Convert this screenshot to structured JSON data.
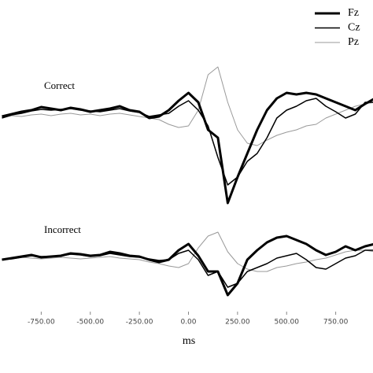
{
  "chart_data": [
    {
      "type": "line",
      "annotation": "Correct",
      "legend": "top-right",
      "xlim": [
        -960,
        940
      ],
      "ylim": [
        -12,
        8
      ],
      "x": [
        -950,
        -900,
        -850,
        -800,
        -750,
        -700,
        -650,
        -600,
        -550,
        -500,
        -450,
        -400,
        -350,
        -300,
        -250,
        -200,
        -150,
        -100,
        -50,
        0,
        50,
        100,
        150,
        200,
        250,
        300,
        350,
        400,
        450,
        500,
        550,
        600,
        650,
        700,
        750,
        800,
        850,
        900,
        950
      ],
      "series": [
        {
          "name": "Fz",
          "color": "#000000",
          "line_width": 3,
          "values": [
            -0.3,
            0,
            0.3,
            0.5,
            0.9,
            0.7,
            0.5,
            0.8,
            0.6,
            0.3,
            0.5,
            0.7,
            1.0,
            0.5,
            0.3,
            -0.5,
            -0.3,
            0.5,
            1.7,
            2.7,
            1.5,
            -2.0,
            -3.0,
            -11.3,
            -8.0,
            -5.0,
            -2.0,
            0.5,
            2.0,
            2.7,
            2.5,
            2.7,
            2.5,
            2.0,
            1.5,
            1.0,
            0.5,
            1.3,
            2.0
          ]
        },
        {
          "name": "Cz",
          "color": "#000000",
          "line_width": 1.5,
          "values": [
            -0.5,
            -0.1,
            0.1,
            0.4,
            0.6,
            0.5,
            0.6,
            0.7,
            0.5,
            0.4,
            0.3,
            0.5,
            0.7,
            0.4,
            0.2,
            -0.3,
            -0.1,
            0.1,
            1.0,
            1.7,
            0.5,
            -1.5,
            -5.5,
            -9.0,
            -8.0,
            -6.0,
            -5.0,
            -3.0,
            -0.5,
            0.5,
            1.0,
            1.7,
            2.0,
            1.0,
            0.3,
            -0.5,
            0,
            1.5,
            1.5
          ]
        },
        {
          "name": "Pz",
          "color": "#999999",
          "line_width": 1,
          "values": [
            -0.5,
            -0.2,
            -0.3,
            -0.1,
            0,
            -0.2,
            0,
            0.1,
            -0.1,
            0,
            -0.2,
            0,
            0.1,
            -0.1,
            -0.3,
            -0.5,
            -0.7,
            -1.3,
            -1.7,
            -1.5,
            0.5,
            5.0,
            6.0,
            1.5,
            -2.0,
            -3.7,
            -4.0,
            -3.3,
            -2.7,
            -2.3,
            -2.0,
            -1.5,
            -1.3,
            -0.5,
            0,
            0.5,
            1.0,
            1.3,
            1.5
          ]
        }
      ]
    },
    {
      "type": "line",
      "annotation": "Incorrect",
      "xlim": [
        -960,
        940
      ],
      "ylim": [
        -6,
        10
      ],
      "xlabel": "ms",
      "xticks": [
        {
          "value": -750,
          "label": "-750.00"
        },
        {
          "value": -500,
          "label": "-500.00"
        },
        {
          "value": -250,
          "label": "-250.00"
        },
        {
          "value": 0,
          "label": "0.00"
        },
        {
          "value": 250,
          "label": "250.00"
        },
        {
          "value": 500,
          "label": "500.00"
        },
        {
          "value": 750,
          "label": "750.00"
        }
      ],
      "x": [
        -950,
        -900,
        -850,
        -800,
        -750,
        -700,
        -650,
        -600,
        -550,
        -500,
        -450,
        -400,
        -350,
        -300,
        -250,
        -200,
        -150,
        -100,
        -50,
        0,
        50,
        100,
        150,
        200,
        250,
        300,
        350,
        400,
        450,
        500,
        550,
        600,
        650,
        700,
        750,
        800,
        850,
        900,
        950
      ],
      "series": [
        {
          "name": "Fz",
          "color": "#000000",
          "line_width": 3,
          "values": [
            -0.2,
            0,
            0.2,
            0.4,
            0.1,
            0.2,
            0.3,
            0.6,
            0.5,
            0.3,
            0.4,
            0.8,
            0.6,
            0.3,
            0.2,
            -0.2,
            -0.5,
            -0.2,
            1.0,
            1.8,
            0.3,
            -1.7,
            -1.7,
            -4.7,
            -3.2,
            -0.2,
            1.0,
            2.0,
            2.6,
            2.8,
            2.3,
            1.8,
            1.0,
            0.4,
            0.8,
            1.5,
            1.0,
            1.5,
            1.8
          ]
        },
        {
          "name": "Cz",
          "color": "#000000",
          "line_width": 1.5,
          "values": [
            -0.2,
            -0.1,
            0.1,
            0.3,
            0.2,
            0.2,
            0.3,
            0.5,
            0.4,
            0.2,
            0.3,
            0.6,
            0.4,
            0.2,
            0.1,
            -0.1,
            -0.3,
            -0.2,
            0.6,
            1.0,
            -0.2,
            -2.2,
            -1.7,
            -3.7,
            -3.2,
            -1.7,
            -1.2,
            -0.7,
            0,
            0.3,
            0.6,
            -0.2,
            -1.2,
            -1.4,
            -0.7,
            0,
            0.3,
            1.0,
            1.0
          ]
        },
        {
          "name": "Pz",
          "color": "#999999",
          "line_width": 1,
          "values": [
            -0.2,
            0,
            0.1,
            0,
            -0.1,
            0,
            0.1,
            0,
            -0.1,
            0,
            0.1,
            0.2,
            0,
            -0.1,
            -0.2,
            -0.5,
            -0.7,
            -1.0,
            -1.2,
            -0.7,
            1.3,
            2.8,
            3.3,
            0.8,
            -0.7,
            -1.4,
            -1.7,
            -1.7,
            -1.2,
            -1.0,
            -0.7,
            -0.5,
            -0.2,
            0,
            0.4,
            0.8,
            1.0,
            1.0,
            0.8
          ]
        }
      ]
    }
  ]
}
